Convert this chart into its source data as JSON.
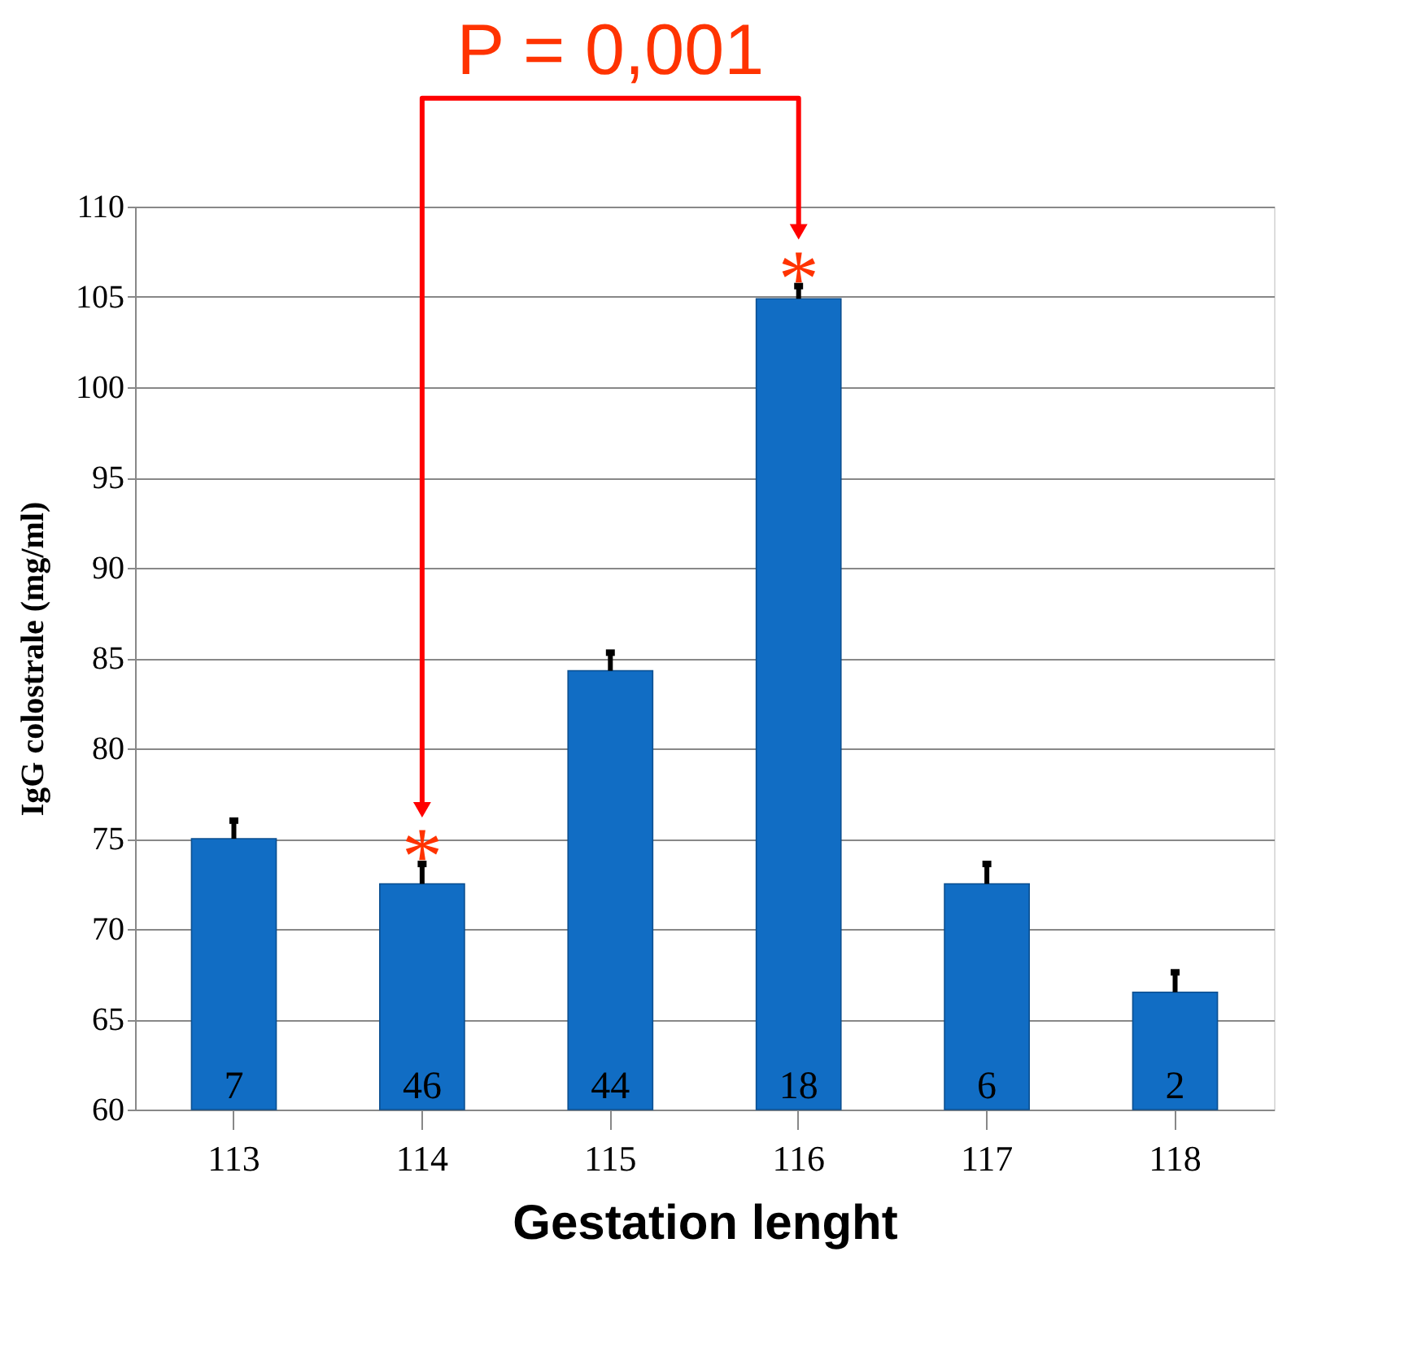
{
  "chart_data": {
    "type": "bar",
    "categories": [
      "113",
      "114",
      "115",
      "116",
      "117",
      "118"
    ],
    "series": [
      {
        "color": "#116dc4",
        "values": [
          75,
          72.5,
          84.3,
          104.9,
          72.5,
          66.5
        ],
        "errors": [
          [
            75,
            76
          ],
          [
            72.5,
            73.6
          ],
          [
            84.3,
            85.3
          ],
          [
            104.9,
            105.6
          ],
          [
            72.5,
            73.6
          ],
          [
            66.5,
            67.6
          ]
        ]
      }
    ],
    "xlabel": "Gestation lenght",
    "ylabel": "IgG colostrale (mg/ml)",
    "ylim": [
      60,
      110
    ],
    "yticks": [
      60,
      65,
      70,
      75,
      80,
      85,
      90,
      95,
      100,
      105,
      110
    ],
    "grid": "y",
    "annotations": [
      "7",
      "46",
      "44",
      "18",
      "6",
      "2",
      {
        "text": "*",
        "x": "114",
        "y": 73.6
      },
      {
        "text": "*",
        "x": "116",
        "y": 105.6
      },
      "P = 0,001"
    ]
  }
}
